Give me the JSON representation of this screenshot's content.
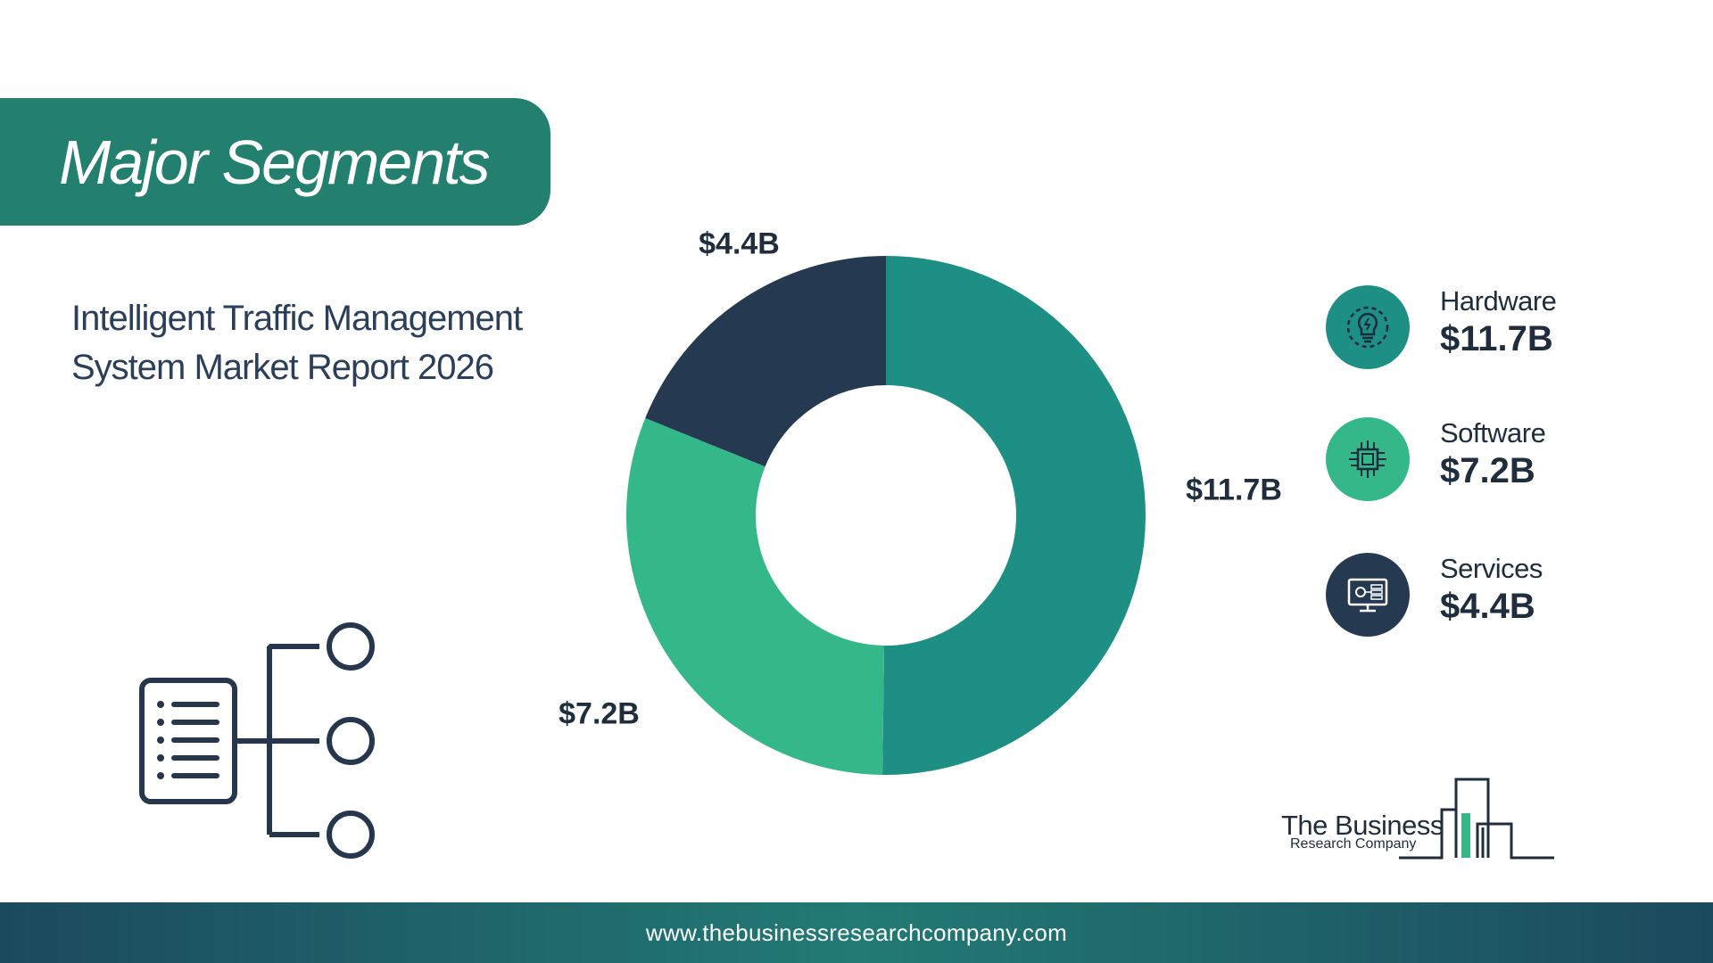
{
  "header": {
    "title": "Major Segments"
  },
  "subtitle": "Intelligent Traffic Management System Market Report 2026",
  "chart_data": {
    "type": "pie",
    "categories": [
      "Hardware",
      "Software",
      "Services"
    ],
    "values": [
      11.7,
      7.2,
      4.4
    ],
    "data_labels": [
      "$11.7B",
      "$7.2B",
      "$4.4B"
    ],
    "colors": [
      "#1d8f84",
      "#34b889",
      "#253a50"
    ],
    "donut": true,
    "legend_placement": "right"
  },
  "legend": {
    "items": [
      {
        "name": "Hardware",
        "value": "$11.7B",
        "color": "#1d8f84",
        "icon": "lightbulb-gear-icon"
      },
      {
        "name": "Software",
        "value": "$7.2B",
        "color": "#34b889",
        "icon": "chip-icon"
      },
      {
        "name": "Services",
        "value": "$4.4B",
        "color": "#253a50",
        "icon": "monitor-settings-icon"
      }
    ]
  },
  "logo": {
    "name": "The Business",
    "sub": "Research Company"
  },
  "footer": {
    "url": "www.thebusinessresearchcompany.com"
  },
  "decor": {
    "icon": "hierarchy-list-icon"
  }
}
